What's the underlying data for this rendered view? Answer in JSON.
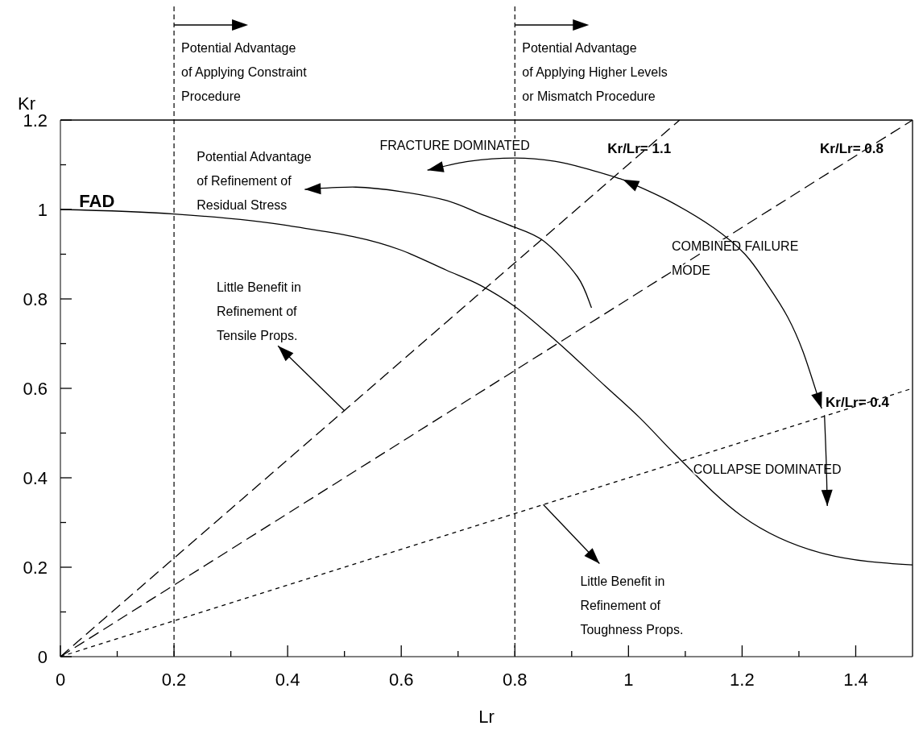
{
  "chart_data": {
    "type": "line",
    "xlabel": "Lr",
    "ylabel": "Kr",
    "xlim": [
      0,
      1.5
    ],
    "ylim": [
      0,
      1.2
    ],
    "xticks": [
      0,
      {
        "value": 0.1,
        "label": null
      },
      0.2,
      {
        "value": 0.3,
        "label": null
      },
      0.4,
      {
        "value": 0.5,
        "label": null
      },
      0.6,
      {
        "value": 0.7,
        "label": null
      },
      0.8,
      {
        "value": 0.9,
        "label": null
      },
      1,
      {
        "value": 1.1,
        "label": null
      },
      1.2,
      {
        "value": 1.3,
        "label": null
      },
      1.4
    ],
    "yticks": [
      0,
      {
        "value": 0.1,
        "label": null
      },
      0.2,
      {
        "value": 0.3,
        "label": null
      },
      0.4,
      {
        "value": 0.5,
        "label": null
      },
      0.6,
      {
        "value": 0.7,
        "label": null
      },
      0.8,
      {
        "value": 0.9,
        "label": null
      },
      1,
      {
        "value": 1.1,
        "label": null
      },
      1.2
    ],
    "series": [
      {
        "name": "FAD",
        "color": "#000000",
        "line_style": "solid",
        "x": [
          0,
          0.2,
          0.4,
          0.6,
          0.68,
          0.74,
          0.8,
          0.87,
          0.96,
          1.02,
          1.08,
          1.2,
          1.345,
          1.5
        ],
        "values": [
          1.0,
          0.99,
          0.964,
          0.909,
          0.864,
          0.83,
          0.783,
          0.709,
          0.604,
          0.534,
          0.455,
          0.314,
          0.23,
          0.205
        ]
      },
      {
        "name": "Kr/Lr= 1.1",
        "color": "#000000",
        "line_style": "dashed",
        "x": [
          0,
          1.09
        ],
        "values": [
          0,
          1.2
        ]
      },
      {
        "name": "Kr/Lr= 0.8",
        "color": "#000000",
        "line_style": "dashed",
        "x": [
          0,
          1.5
        ],
        "values": [
          0,
          1.2
        ]
      },
      {
        "name": "Kr/Lr= 0.4",
        "color": "#000000",
        "line_style": "dotted",
        "x": [
          0,
          1.5
        ],
        "values": [
          0,
          0.6
        ]
      }
    ],
    "ref_lines": [
      {
        "axis": "x",
        "value": 0.2,
        "label": "Potential Advantage\nof Applying Constraint\nProcedure",
        "color": "#000000",
        "line_style": "dashed"
      },
      {
        "axis": "x",
        "value": 0.8,
        "label": "Potential Advantage\nof Applying Higher Levels\nor Mismatch Procedure",
        "color": "#000000",
        "line_style": "dashed"
      }
    ],
    "annotations": [
      "Potential Advantage\nof Refinement of\nResidual Stress",
      "FRACTURE DOMINATED",
      "COMBINED FAILURE\nMODE",
      "COLLAPSE DOMINATED",
      {
        "text": "Little Benefit in\nRefinement of\nTensile Props.",
        "x": 0.5,
        "y": 0.55
      },
      {
        "text": "Little Benefit in\nRefinement of\nToughness Props.",
        "x": 0.85,
        "y": 0.34
      }
    ]
  }
}
